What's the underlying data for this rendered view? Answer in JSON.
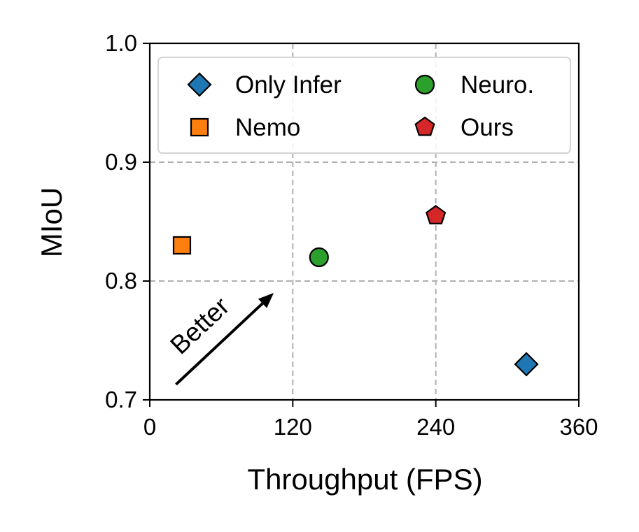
{
  "chart_data": {
    "type": "scatter",
    "title": "",
    "xlabel": "Throughput (FPS)",
    "ylabel": "MIoU",
    "xlim": [
      0,
      360
    ],
    "ylim": [
      0.7,
      1.0
    ],
    "xticks": [
      0,
      120,
      240,
      360
    ],
    "yticks": [
      0.7,
      0.8,
      0.9,
      1.0
    ],
    "xtick_labels": [
      "0",
      "120",
      "240",
      "360"
    ],
    "ytick_labels": [
      "0.7",
      "0.8",
      "0.9",
      "1.0"
    ],
    "grid": true,
    "legend_position": "top",
    "series": [
      {
        "name": "Only Infer",
        "marker": "diamond",
        "color": "#1f77b4",
        "x": 316,
        "y": 0.73
      },
      {
        "name": "Nemo",
        "marker": "square",
        "color": "#ff7f0e",
        "x": 27,
        "y": 0.83
      },
      {
        "name": "Neuro.",
        "marker": "circle",
        "color": "#2ca02c",
        "x": 142,
        "y": 0.82
      },
      {
        "name": "Ours",
        "marker": "pentagon",
        "color": "#d62728",
        "x": 240,
        "y": 0.855
      }
    ],
    "annotation": {
      "text": "Better",
      "from": [
        22,
        0.713
      ],
      "to": [
        104,
        0.79
      ]
    }
  }
}
